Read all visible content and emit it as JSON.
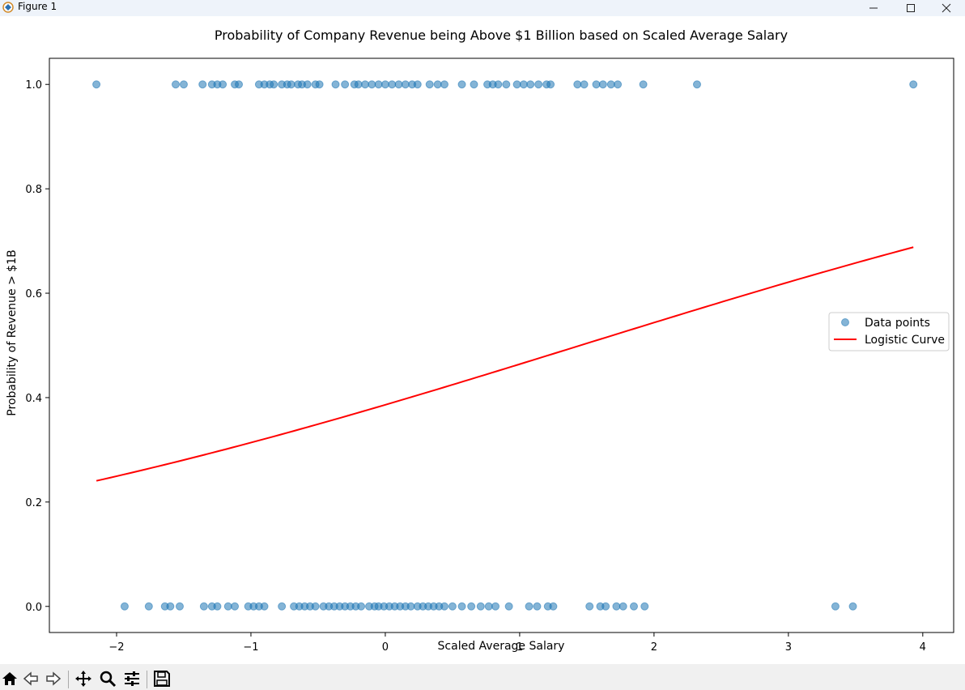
{
  "window": {
    "title": "Figure 1",
    "controls": [
      "minimize",
      "maximize",
      "close"
    ]
  },
  "toolbar": {
    "buttons": [
      "home-icon",
      "back-icon",
      "forward-icon",
      "pan-icon",
      "zoom-icon",
      "configure-subplots-icon",
      "save-icon"
    ]
  },
  "chart_data": {
    "type": "scatter",
    "title": "Probability of Company Revenue being Above $1 Billion based on Scaled Average Salary",
    "xlabel": "Scaled Average Salary",
    "ylabel": "Probability of Revenue > $1B",
    "xlim": [
      -2.5,
      4.23
    ],
    "ylim": [
      -0.05,
      1.05
    ],
    "xticks": [
      -2,
      -1,
      0,
      1,
      2,
      3,
      4
    ],
    "yticks": [
      0.0,
      0.2,
      0.4,
      0.6,
      0.8,
      1.0
    ],
    "xtick_labels": [
      "−2",
      "−1",
      "0",
      "1",
      "2",
      "3",
      "4"
    ],
    "ytick_labels": [
      "0.0",
      "0.2",
      "0.4",
      "0.6",
      "0.8",
      "1.0"
    ],
    "grid": false,
    "legend": {
      "position": "center-right",
      "entries": [
        "Data points",
        "Logistic Curve"
      ]
    },
    "series": [
      {
        "name": "Data points",
        "kind": "scatter",
        "color": "#1f77b4",
        "alpha": 0.55,
        "points_y1": [
          -2.15,
          -1.56,
          -1.5,
          -1.36,
          -1.29,
          -1.25,
          -1.21,
          -1.12,
          -1.09,
          -0.94,
          -0.9,
          -0.86,
          -0.83,
          -0.77,
          -0.73,
          -0.7,
          -0.65,
          -0.62,
          -0.58,
          -0.52,
          -0.49,
          -0.37,
          -0.3,
          -0.23,
          -0.2,
          -0.15,
          -0.1,
          -0.05,
          0.0,
          0.05,
          0.1,
          0.15,
          0.2,
          0.24,
          0.33,
          0.39,
          0.44,
          0.57,
          0.66,
          0.76,
          0.8,
          0.84,
          0.9,
          0.98,
          1.03,
          1.08,
          1.14,
          1.2,
          1.23,
          1.43,
          1.48,
          1.57,
          1.62,
          1.68,
          1.73,
          1.92,
          2.32,
          3.93
        ],
        "points_y0": [
          -1.94,
          -1.76,
          -1.64,
          -1.6,
          -1.53,
          -1.35,
          -1.29,
          -1.25,
          -1.17,
          -1.12,
          -1.02,
          -0.98,
          -0.94,
          -0.9,
          -0.77,
          -0.68,
          -0.64,
          -0.6,
          -0.56,
          -0.52,
          -0.46,
          -0.42,
          -0.38,
          -0.34,
          -0.3,
          -0.26,
          -0.22,
          -0.18,
          -0.12,
          -0.08,
          -0.05,
          -0.01,
          0.03,
          0.07,
          0.11,
          0.15,
          0.19,
          0.24,
          0.28,
          0.32,
          0.36,
          0.4,
          0.44,
          0.5,
          0.57,
          0.64,
          0.71,
          0.77,
          0.82,
          0.92,
          1.07,
          1.13,
          1.21,
          1.25,
          1.52,
          1.6,
          1.64,
          1.72,
          1.77,
          1.85,
          1.93,
          3.35,
          3.48
        ]
      },
      {
        "name": "Logistic Curve",
        "kind": "line",
        "color": "#ff0000",
        "intercept": -0.4632,
        "slope": 0.3192,
        "x_range": [
          -2.15,
          3.93
        ]
      }
    ]
  }
}
